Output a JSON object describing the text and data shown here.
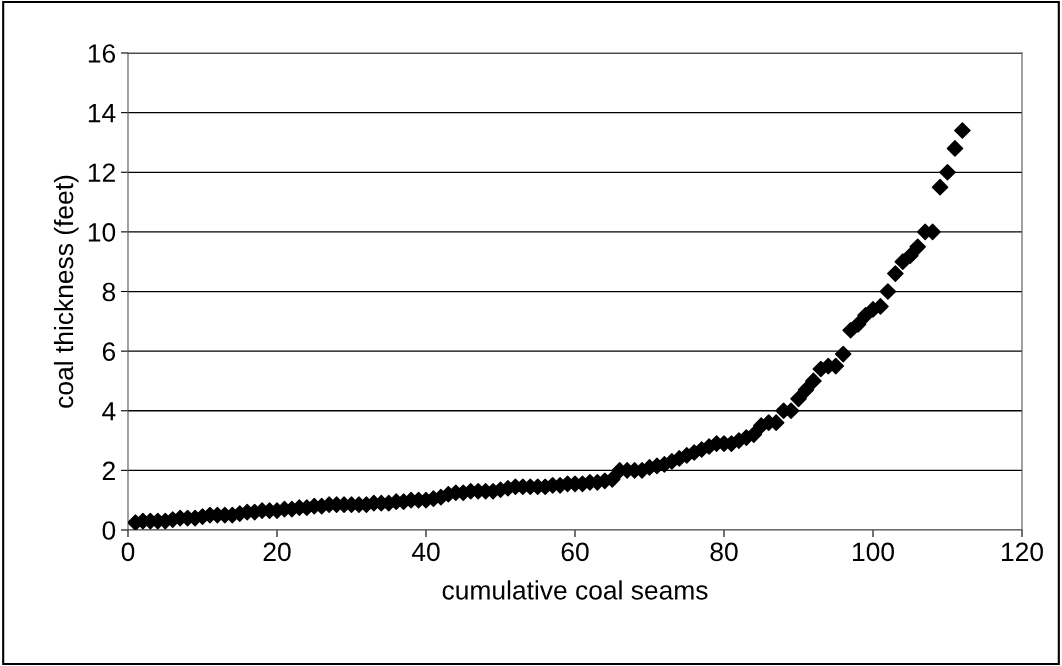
{
  "chart_data": {
    "type": "scatter",
    "xlabel": "cumulative coal seams",
    "ylabel": "coal thickness (feet)",
    "x": [
      1,
      2,
      3,
      4,
      5,
      6,
      7,
      8,
      9,
      10,
      11,
      12,
      13,
      14,
      15,
      16,
      17,
      18,
      19,
      20,
      21,
      22,
      23,
      24,
      25,
      26,
      27,
      28,
      29,
      30,
      31,
      32,
      33,
      34,
      35,
      36,
      37,
      38,
      39,
      40,
      41,
      42,
      43,
      44,
      45,
      46,
      47,
      48,
      49,
      50,
      51,
      52,
      53,
      54,
      55,
      56,
      57,
      58,
      59,
      60,
      61,
      62,
      63,
      64,
      65,
      66,
      67,
      68,
      69,
      70,
      71,
      72,
      73,
      74,
      75,
      76,
      77,
      78,
      79,
      80,
      81,
      82,
      83,
      84,
      85,
      86,
      87,
      88,
      89,
      90,
      91,
      92,
      93,
      94,
      95,
      96,
      97,
      98,
      99,
      100,
      101,
      102,
      103,
      104,
      105,
      106,
      107,
      108,
      109,
      110,
      111,
      112
    ],
    "series": [
      {
        "color": "#000000",
        "values": [
          0.25,
          0.3,
          0.3,
          0.3,
          0.3,
          0.35,
          0.4,
          0.4,
          0.4,
          0.45,
          0.5,
          0.5,
          0.5,
          0.5,
          0.55,
          0.6,
          0.6,
          0.65,
          0.65,
          0.65,
          0.7,
          0.7,
          0.75,
          0.75,
          0.8,
          0.8,
          0.85,
          0.85,
          0.85,
          0.85,
          0.85,
          0.85,
          0.9,
          0.9,
          0.9,
          0.95,
          0.95,
          1.0,
          1.0,
          1.0,
          1.05,
          1.1,
          1.2,
          1.25,
          1.25,
          1.3,
          1.3,
          1.3,
          1.3,
          1.35,
          1.4,
          1.45,
          1.45,
          1.45,
          1.45,
          1.45,
          1.5,
          1.5,
          1.55,
          1.55,
          1.55,
          1.6,
          1.6,
          1.65,
          1.7,
          2.0,
          2.0,
          2.0,
          2.0,
          2.1,
          2.15,
          2.2,
          2.3,
          2.4,
          2.5,
          2.6,
          2.7,
          2.8,
          2.9,
          2.9,
          2.9,
          3.0,
          3.1,
          3.2,
          3.5,
          3.6,
          3.6,
          4.0,
          4.0,
          4.4,
          4.7,
          5.0,
          5.4,
          5.5,
          5.5,
          5.9,
          6.7,
          6.9,
          7.2,
          7.4,
          7.5,
          8.0,
          8.6,
          9.0,
          9.2,
          9.5,
          10.0,
          10.0,
          11.5,
          12.0,
          12.8,
          13.4
        ]
      }
    ],
    "xlim": [
      0,
      120
    ],
    "xticks": [
      0,
      20,
      40,
      60,
      80,
      100,
      120
    ],
    "ylim": [
      0,
      16
    ],
    "yticks": [
      0,
      2,
      4,
      6,
      8,
      10,
      12,
      14,
      16
    ],
    "grid": "y",
    "marker": "diamond",
    "legend": false
  }
}
